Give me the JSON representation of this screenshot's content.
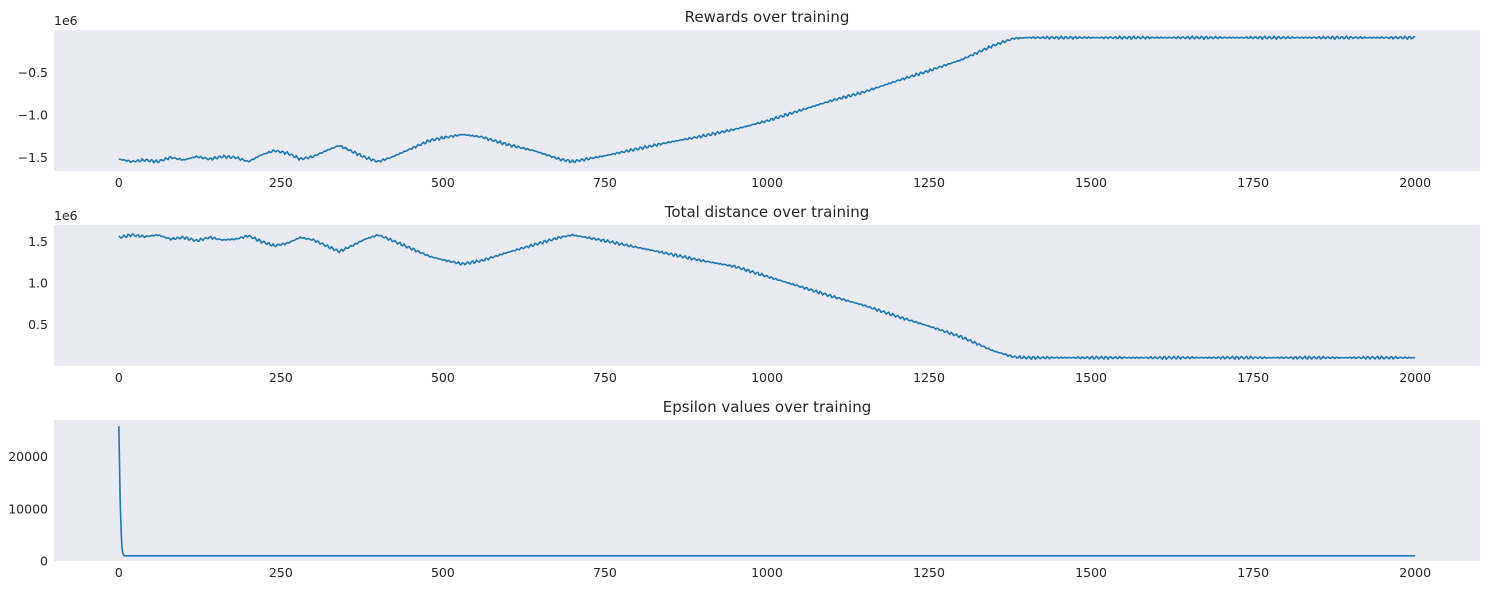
{
  "chart_data": [
    {
      "type": "line",
      "title": "Rewards over training",
      "xlabel": "",
      "ylabel": "",
      "offset_text": "1e6",
      "xlim": [
        -100,
        2100
      ],
      "ylim": [
        -1.66,
        0.0
      ],
      "x_ticks": [
        0,
        250,
        500,
        750,
        1000,
        1250,
        1500,
        1750,
        2000
      ],
      "x_tick_labels": [
        "0",
        "250",
        "500",
        "750",
        "1000",
        "1250",
        "1500",
        "1750",
        "2000"
      ],
      "y_ticks": [
        -1.5,
        -1.0,
        -0.5
      ],
      "y_tick_labels": [
        "−1.5",
        "−1.0",
        "−0.5"
      ],
      "grid": false,
      "series": [
        {
          "x": [
            0,
            20,
            40,
            60,
            80,
            100,
            120,
            140,
            160,
            180,
            200,
            220,
            240,
            260,
            280,
            300,
            320,
            340,
            360,
            380,
            400,
            420,
            450,
            480,
            500,
            530,
            560,
            600,
            640,
            680,
            700,
            750,
            800,
            850,
            900,
            950,
            1000,
            1050,
            1100,
            1150,
            1200,
            1250,
            1300,
            1350,
            1380,
            1400,
            1450,
            1500,
            1600,
            1700,
            1800,
            1900,
            2000
          ],
          "y": [
            -1.52,
            -1.55,
            -1.53,
            -1.55,
            -1.5,
            -1.53,
            -1.49,
            -1.52,
            -1.49,
            -1.5,
            -1.55,
            -1.47,
            -1.42,
            -1.45,
            -1.52,
            -1.49,
            -1.42,
            -1.36,
            -1.43,
            -1.5,
            -1.55,
            -1.5,
            -1.4,
            -1.3,
            -1.27,
            -1.23,
            -1.26,
            -1.35,
            -1.42,
            -1.52,
            -1.55,
            -1.48,
            -1.4,
            -1.32,
            -1.25,
            -1.17,
            -1.07,
            -0.95,
            -0.83,
            -0.73,
            -0.6,
            -0.48,
            -0.35,
            -0.18,
            -0.1,
            -0.09,
            -0.09,
            -0.09,
            -0.09,
            -0.09,
            -0.09,
            -0.09,
            -0.09
          ]
        }
      ]
    },
    {
      "type": "line",
      "title": "Total distance over training",
      "xlabel": "",
      "ylabel": "",
      "offset_text": "1e6",
      "xlim": [
        -100,
        2100
      ],
      "ylim": [
        0.0,
        1.7
      ],
      "x_ticks": [
        0,
        250,
        500,
        750,
        1000,
        1250,
        1500,
        1750,
        2000
      ],
      "x_tick_labels": [
        "0",
        "250",
        "500",
        "750",
        "1000",
        "1250",
        "1500",
        "1750",
        "2000"
      ],
      "y_ticks": [
        0.5,
        1.0,
        1.5
      ],
      "y_tick_labels": [
        "0.5",
        "1.0",
        "1.5"
      ],
      "grid": false,
      "series": [
        {
          "x": [
            0,
            20,
            40,
            60,
            80,
            100,
            120,
            140,
            160,
            180,
            200,
            220,
            240,
            260,
            280,
            300,
            320,
            340,
            360,
            380,
            400,
            420,
            450,
            480,
            500,
            530,
            560,
            600,
            640,
            680,
            700,
            750,
            800,
            850,
            900,
            950,
            1000,
            1050,
            1100,
            1150,
            1200,
            1250,
            1300,
            1350,
            1380,
            1400,
            1450,
            1500,
            1600,
            1700,
            1800,
            1900,
            2000
          ],
          "y": [
            1.55,
            1.58,
            1.56,
            1.58,
            1.53,
            1.55,
            1.51,
            1.55,
            1.52,
            1.53,
            1.57,
            1.5,
            1.45,
            1.48,
            1.55,
            1.52,
            1.45,
            1.38,
            1.45,
            1.53,
            1.58,
            1.52,
            1.42,
            1.32,
            1.28,
            1.23,
            1.27,
            1.37,
            1.46,
            1.55,
            1.58,
            1.51,
            1.43,
            1.35,
            1.27,
            1.2,
            1.08,
            0.96,
            0.84,
            0.73,
            0.6,
            0.48,
            0.35,
            0.18,
            0.11,
            0.1,
            0.1,
            0.1,
            0.1,
            0.1,
            0.1,
            0.1,
            0.1
          ]
        }
      ]
    },
    {
      "type": "line",
      "title": "Epsilon values over training",
      "xlabel": "",
      "ylabel": "",
      "offset_text": "",
      "xlim": [
        -100,
        2100
      ],
      "ylim": [
        0,
        27000
      ],
      "x_ticks": [
        0,
        250,
        500,
        750,
        1000,
        1250,
        1500,
        1750,
        2000
      ],
      "x_tick_labels": [
        "0",
        "250",
        "500",
        "750",
        "1000",
        "1250",
        "1500",
        "1750",
        "2000"
      ],
      "y_ticks": [
        0,
        10000,
        20000
      ],
      "y_tick_labels": [
        "0",
        "10000",
        "20000"
      ],
      "grid": false,
      "series": [
        {
          "x": [
            0,
            1,
            2,
            3,
            4,
            5,
            6,
            8,
            10,
            50,
            100,
            500,
            1000,
            1500,
            2000
          ],
          "y": [
            25800,
            19000,
            12000,
            8000,
            4500,
            2500,
            1500,
            1050,
            1000,
            1000,
            1000,
            1000,
            1000,
            1000,
            1000
          ]
        }
      ]
    }
  ]
}
